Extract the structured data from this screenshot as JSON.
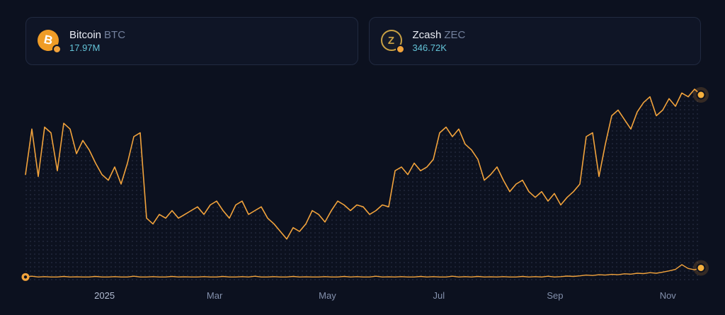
{
  "cards": [
    {
      "name": "Bitcoin",
      "ticker": "BTC",
      "value": "17.97M",
      "icon_glyph": "B"
    },
    {
      "name": "Zcash",
      "ticker": "ZEC",
      "value": "346.72K",
      "icon_glyph": "Z"
    }
  ],
  "colors": {
    "bg": "#0c111f",
    "card_bg": "#0f1526",
    "card_border": "#212a40",
    "text_primary": "#e9ecf4",
    "text_muted": "#73809c",
    "accent": "#f2a33c",
    "value": "#63c3d7",
    "grid_dot": "#6b7a9e",
    "axis_label": "#8491ad",
    "btc_icon_bg": "#ef9c27",
    "zec_icon_ring": "#c9a144",
    "marker_core": "#f6b03d"
  },
  "chart_data": {
    "type": "line",
    "title": "",
    "xlabel": "",
    "ylabel": "",
    "grid": "dotted-area-under-line",
    "legend_position": "top-cards",
    "ylim": [
      0,
      100
    ],
    "x_ticks": [
      {
        "label": "2025",
        "pos": 0.117,
        "major": true
      },
      {
        "label": "Mar",
        "pos": 0.28,
        "major": false
      },
      {
        "label": "May",
        "pos": 0.447,
        "major": false
      },
      {
        "label": "Jul",
        "pos": 0.612,
        "major": false
      },
      {
        "label": "Sep",
        "pos": 0.784,
        "major": false
      },
      {
        "label": "Nov",
        "pos": 0.951,
        "major": false
      }
    ],
    "series": [
      {
        "name": "Bitcoin BTC",
        "color": "#f2a33c",
        "current_value": "17.97M",
        "values": [
          55,
          79,
          54,
          80,
          77,
          57,
          82,
          79,
          66,
          73,
          68,
          61,
          55,
          52,
          59,
          50,
          61,
          75,
          77,
          32,
          29,
          34,
          32,
          36,
          32,
          34,
          36,
          38,
          34,
          39,
          41,
          36,
          32,
          39,
          41,
          34,
          36,
          38,
          32,
          29,
          25,
          21,
          27,
          25,
          29,
          36,
          34,
          30,
          36,
          41,
          39,
          36,
          39,
          38,
          34,
          36,
          39,
          38,
          57,
          59,
          55,
          61,
          57,
          59,
          63,
          77,
          80,
          75,
          79,
          71,
          68,
          63,
          52,
          55,
          59,
          52,
          46,
          50,
          52,
          46,
          43,
          46,
          41,
          45,
          39,
          43,
          46,
          50,
          75,
          77,
          54,
          71,
          86,
          89,
          84,
          79,
          88,
          93,
          96,
          86,
          89,
          95,
          91,
          98,
          96,
          100,
          97
        ]
      },
      {
        "name": "Zcash ZEC",
        "color": "#f2a33c",
        "current_value": "346.72K",
        "values": [
          1,
          1.4,
          1,
          1.2,
          1,
          1,
          1.3,
          1,
          1.1,
          1,
          1,
          1.3,
          1,
          1,
          1.2,
          1,
          1,
          1.4,
          1,
          1,
          1.2,
          1,
          1,
          1.3,
          1,
          1.1,
          1,
          1,
          1.2,
          1,
          1,
          1.3,
          1,
          1,
          1.2,
          1,
          1.4,
          1,
          1,
          1.2,
          1,
          1,
          1.3,
          1,
          1.1,
          1,
          1,
          1.2,
          1,
          1,
          1.3,
          1,
          1.2,
          1,
          1,
          1.4,
          1,
          1.1,
          1,
          1.2,
          1,
          1,
          1.3,
          1,
          1.2,
          1,
          1,
          1.4,
          1,
          1.2,
          1,
          1.3,
          1,
          1.1,
          1,
          1.2,
          1,
          1,
          1.3,
          1,
          1.2,
          1,
          1.4,
          1,
          1.2,
          1.5,
          1.3,
          1.6,
          2,
          1.8,
          2.2,
          2,
          2.4,
          2.2,
          2.7,
          2.5,
          3,
          2.8,
          3.3,
          3,
          3.6,
          4.2,
          5,
          7.5,
          5.5,
          4.8,
          5.8
        ]
      }
    ]
  }
}
